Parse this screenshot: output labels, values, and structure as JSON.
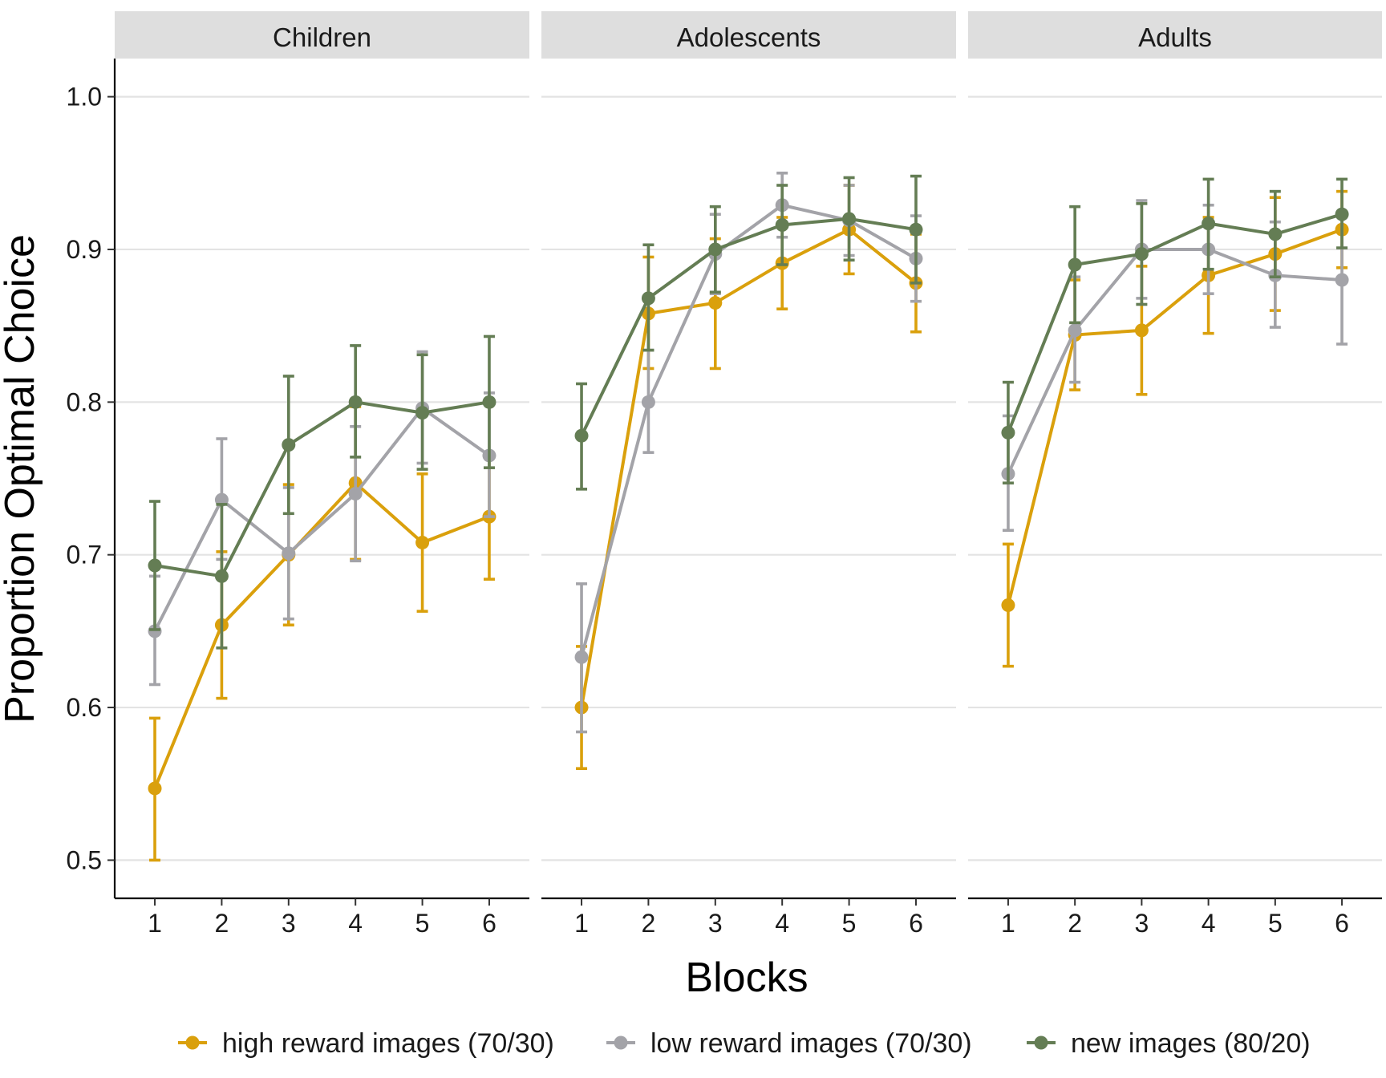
{
  "chart_data": {
    "type": "line",
    "xlabel": "Blocks",
    "ylabel": "Proportion Optimal Choice",
    "x": [
      1,
      2,
      3,
      4,
      5,
      6
    ],
    "ylim": [
      0.475,
      1.025
    ],
    "yticks": [
      "0.5",
      "0.6",
      "0.7",
      "0.8",
      "0.9",
      "1.0"
    ],
    "grid": "horizontal major lines",
    "legend": "bottom",
    "series_styles": [
      {
        "name": "high reward images (70/30)",
        "color": "#DAA00C"
      },
      {
        "name": "low reward images (70/30)",
        "color": "#A3A3A8"
      },
      {
        "name": "new images (80/20)",
        "color": "#647D54"
      }
    ],
    "panels": [
      {
        "title": "Children",
        "series": [
          {
            "name": "high reward images (70/30)",
            "values": [
              0.547,
              0.654,
              0.7,
              0.747,
              0.708,
              0.725
            ],
            "lower": [
              0.5,
              0.606,
              0.654,
              0.697,
              0.663,
              0.684
            ],
            "upper": [
              0.593,
              0.702,
              0.746,
              0.797,
              0.753,
              0.766
            ]
          },
          {
            "name": "low reward images (70/30)",
            "values": [
              0.65,
              0.736,
              0.701,
              0.74,
              0.796,
              0.765
            ],
            "lower": [
              0.615,
              0.697,
              0.658,
              0.696,
              0.76,
              0.725
            ],
            "upper": [
              0.686,
              0.776,
              0.744,
              0.784,
              0.833,
              0.806
            ]
          },
          {
            "name": "new images (80/20)",
            "values": [
              0.693,
              0.686,
              0.772,
              0.8,
              0.793,
              0.8
            ],
            "lower": [
              0.651,
              0.639,
              0.727,
              0.764,
              0.756,
              0.757
            ],
            "upper": [
              0.735,
              0.733,
              0.817,
              0.837,
              0.831,
              0.843
            ]
          }
        ]
      },
      {
        "title": "Adolescents",
        "series": [
          {
            "name": "high reward images (70/30)",
            "values": [
              0.6,
              0.858,
              0.865,
              0.891,
              0.913,
              0.878
            ],
            "lower": [
              0.56,
              0.822,
              0.822,
              0.861,
              0.884,
              0.846
            ],
            "upper": [
              0.64,
              0.895,
              0.907,
              0.921,
              0.942,
              0.91
            ]
          },
          {
            "name": "low reward images (70/30)",
            "values": [
              0.633,
              0.8,
              0.897,
              0.929,
              0.919,
              0.894
            ],
            "lower": [
              0.584,
              0.767,
              0.871,
              0.908,
              0.896,
              0.866
            ],
            "upper": [
              0.681,
              0.834,
              0.923,
              0.95,
              0.942,
              0.922
            ]
          },
          {
            "name": "new images (80/20)",
            "values": [
              0.778,
              0.868,
              0.9,
              0.916,
              0.92,
              0.913
            ],
            "lower": [
              0.743,
              0.834,
              0.872,
              0.89,
              0.893,
              0.878
            ],
            "upper": [
              0.812,
              0.903,
              0.928,
              0.942,
              0.947,
              0.948
            ]
          }
        ]
      },
      {
        "title": "Adults",
        "series": [
          {
            "name": "high reward images (70/30)",
            "values": [
              0.667,
              0.844,
              0.847,
              0.883,
              0.897,
              0.913
            ],
            "lower": [
              0.627,
              0.808,
              0.805,
              0.845,
              0.86,
              0.888
            ],
            "upper": [
              0.707,
              0.88,
              0.889,
              0.921,
              0.934,
              0.938
            ]
          },
          {
            "name": "low reward images (70/30)",
            "values": [
              0.753,
              0.847,
              0.9,
              0.9,
              0.883,
              0.88
            ],
            "lower": [
              0.716,
              0.813,
              0.868,
              0.871,
              0.849,
              0.838
            ],
            "upper": [
              0.791,
              0.882,
              0.932,
              0.929,
              0.918,
              0.922
            ]
          },
          {
            "name": "new images (80/20)",
            "values": [
              0.78,
              0.89,
              0.897,
              0.917,
              0.91,
              0.923
            ],
            "lower": [
              0.747,
              0.852,
              0.864,
              0.887,
              0.882,
              0.901
            ],
            "upper": [
              0.813,
              0.928,
              0.93,
              0.946,
              0.938,
              0.946
            ]
          }
        ]
      }
    ]
  }
}
